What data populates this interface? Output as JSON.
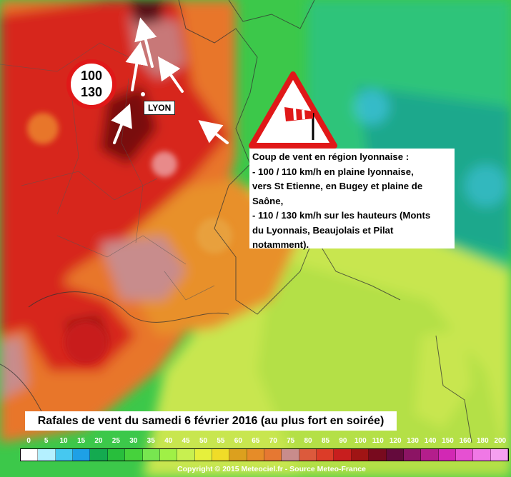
{
  "speed_sign": {
    "top": "100",
    "bottom": "130"
  },
  "city_label": "LYON",
  "warning_icon": "windsock-warning-icon",
  "alert_lines": [
    "Coup de vent en région lyonnaise :",
    " - 100 / 110 km/h en plaine lyonnaise,",
    "vers St Etienne, en Bugey et plaine de",
    "Saône,",
    " - 110 / 130 km/h sur les hauteurs (Monts",
    "du Lyonnais, Beaujolais et Pilat",
    "notamment)."
  ],
  "caption": "Rafales de vent du samedi 6 février 2016 (au plus fort en soirée)",
  "legend": {
    "values": [
      "0",
      "5",
      "10",
      "15",
      "20",
      "25",
      "30",
      "35",
      "40",
      "45",
      "50",
      "55",
      "60",
      "65",
      "70",
      "75",
      "80",
      "85",
      "90",
      "100",
      "110",
      "120",
      "130",
      "140",
      "150",
      "160",
      "180",
      "200"
    ],
    "colors": [
      "#ffffff",
      "#b4f0ff",
      "#46c8f0",
      "#1ea0e6",
      "#14aa50",
      "#28be3c",
      "#46d23c",
      "#78e650",
      "#a0f046",
      "#c8f050",
      "#e6f03c",
      "#f0dc28",
      "#dca01e",
      "#e68c28",
      "#e67832",
      "#c88c8c",
      "#dc5a3c",
      "#dc3c28",
      "#c81e1e",
      "#a01414",
      "#780a1e",
      "#640a3c",
      "#8c1464",
      "#b41e8c",
      "#d228b4",
      "#e650d2",
      "#f078e6",
      "#f5a0f0"
    ]
  },
  "copyright": "Copyright © 2015 Meteociel.fr - Source Meteo-France",
  "colors": {
    "red": "#d7261e",
    "dark_red": "#7a0a0a",
    "orange": "#e8762c",
    "green": "#3cc84a",
    "yellow_green": "#c8e650",
    "mauve": "#c88c8c"
  }
}
